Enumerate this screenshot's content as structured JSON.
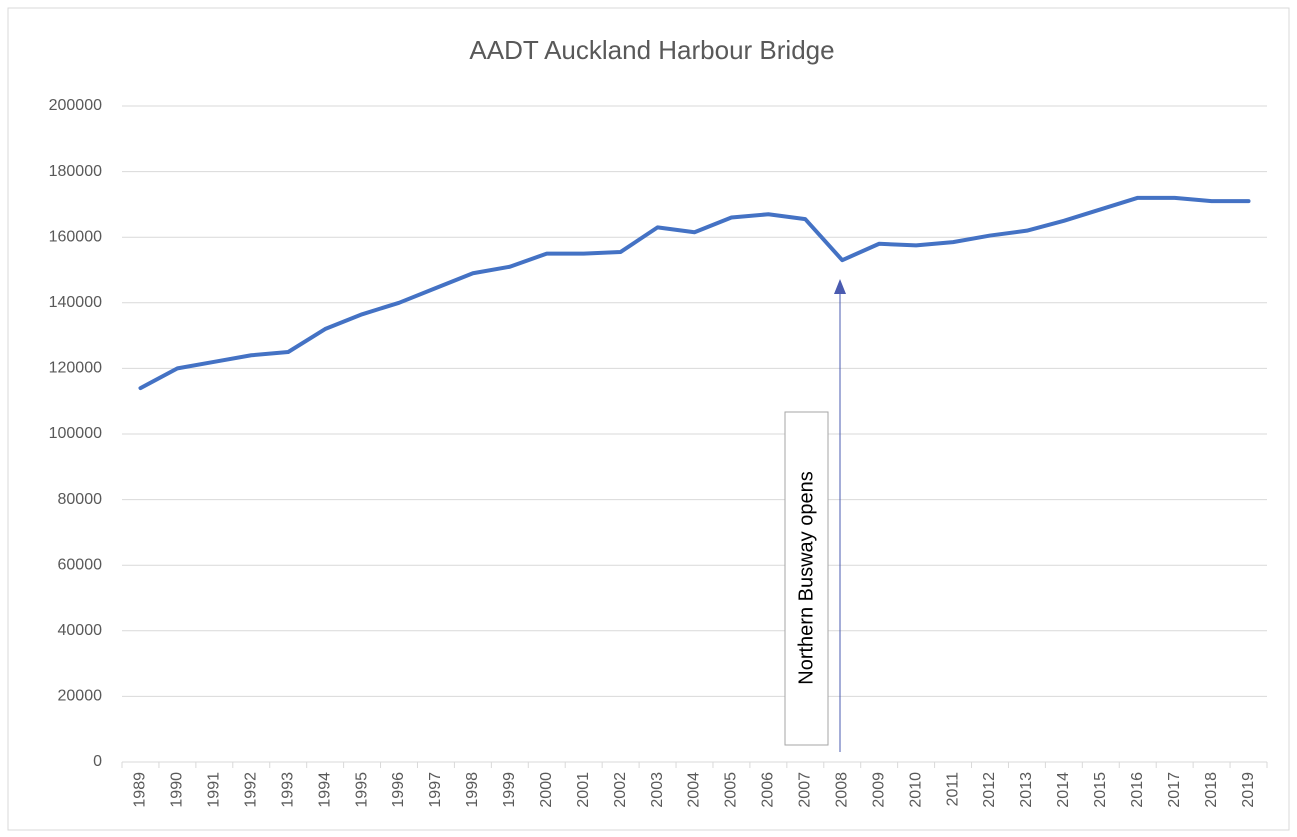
{
  "chart_data": {
    "type": "line",
    "title": "AADT Auckland Harbour Bridge",
    "categories": [
      "1989",
      "1990",
      "1991",
      "1992",
      "1993",
      "1994",
      "1995",
      "1996",
      "1997",
      "1998",
      "1999",
      "2000",
      "2001",
      "2002",
      "2003",
      "2004",
      "2005",
      "2006",
      "2007",
      "2008",
      "2009",
      "2010",
      "2011",
      "2012",
      "2013",
      "2014",
      "2015",
      "2016",
      "2017",
      "2018",
      "2019"
    ],
    "series": [
      {
        "color": "#4472c4",
        "values": [
          114000,
          120000,
          122000,
          124000,
          125000,
          132000,
          136500,
          140000,
          144500,
          149000,
          151000,
          155000,
          155000,
          155500,
          163000,
          161500,
          166000,
          167000,
          165500,
          153000,
          158000,
          157500,
          158500,
          160500,
          162000,
          165000,
          168500,
          172000,
          172000,
          171000,
          171000
        ]
      }
    ],
    "ylim": [
      0,
      200000
    ],
    "yticks": [
      0,
      20000,
      40000,
      60000,
      80000,
      100000,
      120000,
      140000,
      160000,
      180000,
      200000
    ],
    "grid": true,
    "annotations": [
      {
        "text": "Northern Busway opens"
      }
    ]
  }
}
